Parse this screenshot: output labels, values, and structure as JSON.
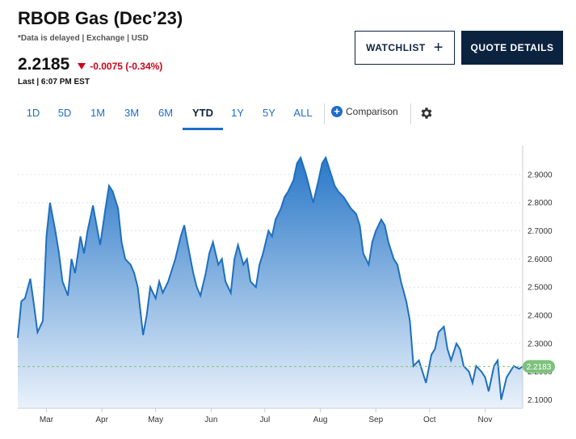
{
  "header": {
    "title": "RBOB Gas (Dec’23)",
    "subtitle": "*Data is delayed | Exchange | USD",
    "price": "2.2185",
    "change": "-0.0075 (-0.34%)",
    "last_time": "Last | 6:07 PM EST"
  },
  "buttons": {
    "watchlist": "WATCHLIST",
    "quote_details": "QUOTE DETAILS"
  },
  "tabs": [
    "1D",
    "5D",
    "1M",
    "3M",
    "6M",
    "YTD",
    "1Y",
    "5Y",
    "ALL"
  ],
  "active_tab": "YTD",
  "comparison_label": "Comparison",
  "icons": {
    "change": "down-triangle-icon",
    "watchlist": "plus-icon",
    "comparison": "plus-circle-icon",
    "settings": "gear-icon"
  },
  "colors": {
    "line": "#1f6fbf",
    "area_top": "#2a78c8",
    "area_bottom": "#eaf2fb",
    "down": "#d0021b",
    "current_tag": "#7dc27d",
    "navy": "#0c2340"
  },
  "chart_data": {
    "type": "area",
    "xlabel": "",
    "ylabel": "",
    "x_ticks": [
      "Mar",
      "Apr",
      "May",
      "Jun",
      "Jul",
      "Aug",
      "Sep",
      "Oct",
      "Nov"
    ],
    "y_ticks": [
      "2.1000",
      "2.2000",
      "2.3000",
      "2.4000",
      "2.5000",
      "2.6000",
      "2.7000",
      "2.8000",
      "2.9000"
    ],
    "ylim": [
      2.07,
      2.98
    ],
    "xlim": [
      "2023-02-13",
      "2023-11-22"
    ],
    "current_value": "2.2183",
    "grid": "horizontal-dashed",
    "series": [
      {
        "x": [
          "2023-02-13",
          "2023-02-15",
          "2023-02-17",
          "2023-02-20",
          "2023-02-22",
          "2023-02-24",
          "2023-02-27",
          "2023-03-01",
          "2023-03-03",
          "2023-03-06",
          "2023-03-08",
          "2023-03-10",
          "2023-03-13",
          "2023-03-15",
          "2023-03-17",
          "2023-03-20",
          "2023-03-22",
          "2023-03-24",
          "2023-03-27",
          "2023-03-29",
          "2023-03-31",
          "2023-04-03",
          "2023-04-05",
          "2023-04-07",
          "2023-04-10",
          "2023-04-12",
          "2023-04-14",
          "2023-04-17",
          "2023-04-19",
          "2023-04-21",
          "2023-04-24",
          "2023-04-26",
          "2023-04-28",
          "2023-05-01",
          "2023-05-03",
          "2023-05-05",
          "2023-05-08",
          "2023-05-10",
          "2023-05-12",
          "2023-05-15",
          "2023-05-17",
          "2023-05-19",
          "2023-05-22",
          "2023-05-24",
          "2023-05-26",
          "2023-05-29",
          "2023-05-31",
          "2023-06-02",
          "2023-06-05",
          "2023-06-07",
          "2023-06-09",
          "2023-06-12",
          "2023-06-14",
          "2023-06-16",
          "2023-06-19",
          "2023-06-21",
          "2023-06-23",
          "2023-06-26",
          "2023-06-28",
          "2023-06-30",
          "2023-07-03",
          "2023-07-05",
          "2023-07-07",
          "2023-07-10",
          "2023-07-12",
          "2023-07-14",
          "2023-07-17",
          "2023-07-19",
          "2023-07-21",
          "2023-07-24",
          "2023-07-26",
          "2023-07-28",
          "2023-07-31",
          "2023-08-02",
          "2023-08-04",
          "2023-08-07",
          "2023-08-09",
          "2023-08-11",
          "2023-08-14",
          "2023-08-16",
          "2023-08-18",
          "2023-08-21",
          "2023-08-23",
          "2023-08-25",
          "2023-08-28",
          "2023-08-30",
          "2023-09-01",
          "2023-09-04",
          "2023-09-06",
          "2023-09-08",
          "2023-09-11",
          "2023-09-13",
          "2023-09-15",
          "2023-09-18",
          "2023-09-20",
          "2023-09-22",
          "2023-09-25",
          "2023-09-27",
          "2023-09-29",
          "2023-10-02",
          "2023-10-04",
          "2023-10-06",
          "2023-10-09",
          "2023-10-11",
          "2023-10-13",
          "2023-10-16",
          "2023-10-18",
          "2023-10-20",
          "2023-10-23",
          "2023-10-25",
          "2023-10-27",
          "2023-10-30",
          "2023-11-01",
          "2023-11-03",
          "2023-11-06",
          "2023-11-08",
          "2023-11-10",
          "2023-11-13",
          "2023-11-15",
          "2023-11-17",
          "2023-11-20",
          "2023-11-22"
        ],
        "y": [
          2.32,
          2.45,
          2.46,
          2.53,
          2.44,
          2.34,
          2.38,
          2.68,
          2.8,
          2.7,
          2.62,
          2.52,
          2.47,
          2.6,
          2.55,
          2.68,
          2.62,
          2.7,
          2.79,
          2.72,
          2.65,
          2.78,
          2.86,
          2.84,
          2.78,
          2.66,
          2.6,
          2.58,
          2.55,
          2.5,
          2.33,
          2.4,
          2.5,
          2.46,
          2.52,
          2.48,
          2.52,
          2.56,
          2.6,
          2.68,
          2.72,
          2.65,
          2.55,
          2.5,
          2.47,
          2.55,
          2.62,
          2.66,
          2.58,
          2.6,
          2.52,
          2.48,
          2.6,
          2.65,
          2.58,
          2.6,
          2.52,
          2.5,
          2.58,
          2.62,
          2.7,
          2.68,
          2.74,
          2.78,
          2.82,
          2.84,
          2.88,
          2.94,
          2.96,
          2.9,
          2.85,
          2.8,
          2.88,
          2.94,
          2.96,
          2.9,
          2.86,
          2.84,
          2.82,
          2.8,
          2.78,
          2.76,
          2.72,
          2.62,
          2.58,
          2.66,
          2.7,
          2.74,
          2.72,
          2.66,
          2.6,
          2.58,
          2.52,
          2.45,
          2.38,
          2.22,
          2.24,
          2.2,
          2.16,
          2.26,
          2.28,
          2.34,
          2.36,
          2.28,
          2.24,
          2.3,
          2.28,
          2.22,
          2.2,
          2.16,
          2.22,
          2.2,
          2.18,
          2.13,
          2.22,
          2.24,
          2.1,
          2.18,
          2.2,
          2.22,
          2.21,
          2.2183
        ]
      }
    ]
  }
}
